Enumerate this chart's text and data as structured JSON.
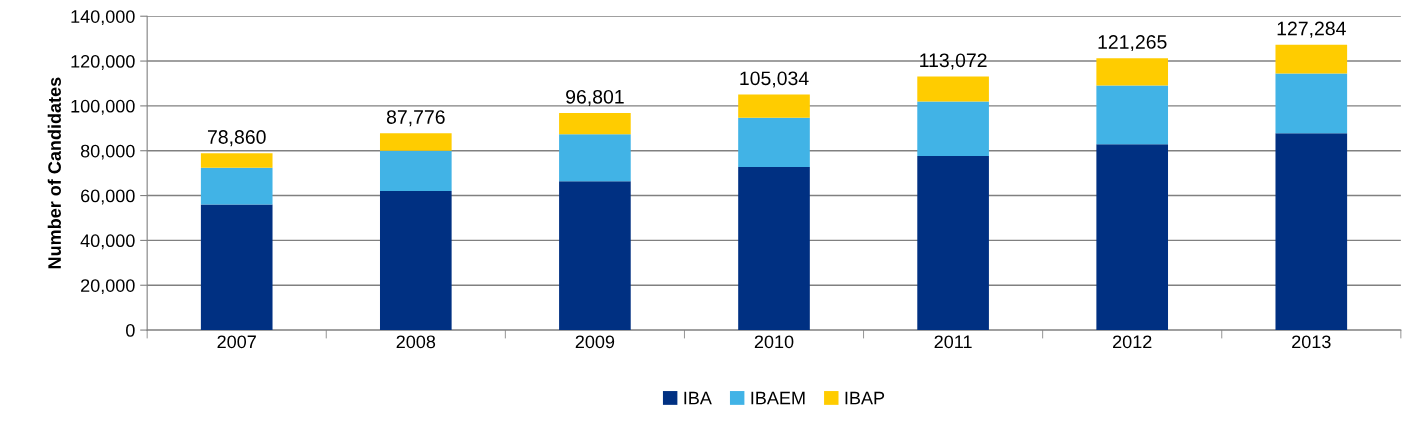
{
  "chart_data": {
    "type": "bar",
    "stacked": true,
    "ylabel": "Number of Candidates",
    "categories": [
      "2007",
      "2008",
      "2009",
      "2010",
      "2011",
      "2012",
      "2013"
    ],
    "series": [
      {
        "name": "IBA",
        "color": "#003082",
        "values": [
          56000,
          62000,
          66400,
          72700,
          77600,
          82900,
          87800
        ]
      },
      {
        "name": "IBAEM",
        "color": "#41b3e6",
        "values": [
          16400,
          18000,
          20900,
          22000,
          24400,
          26200,
          26600
        ]
      },
      {
        "name": "IBAP",
        "color": "#ffcc00",
        "values": [
          6460,
          7776,
          9501,
          10334,
          11072,
          12165,
          12884
        ]
      }
    ],
    "totals": [
      "78,860",
      "87,776",
      "96,801",
      "105,034",
      "113,072",
      "121,265",
      "127,284"
    ],
    "ylim": [
      0,
      140000
    ],
    "yticks": [
      {
        "value": 0,
        "label": "0"
      },
      {
        "value": 20000,
        "label": "20,000"
      },
      {
        "value": 40000,
        "label": "40,000"
      },
      {
        "value": 60000,
        "label": "60,000"
      },
      {
        "value": 80000,
        "label": "80,000"
      },
      {
        "value": 100000,
        "label": "100,000"
      },
      {
        "value": 120000,
        "label": "120,000"
      },
      {
        "value": 140000,
        "label": "140,000"
      }
    ],
    "grid": "y",
    "legend": "bottom"
  }
}
